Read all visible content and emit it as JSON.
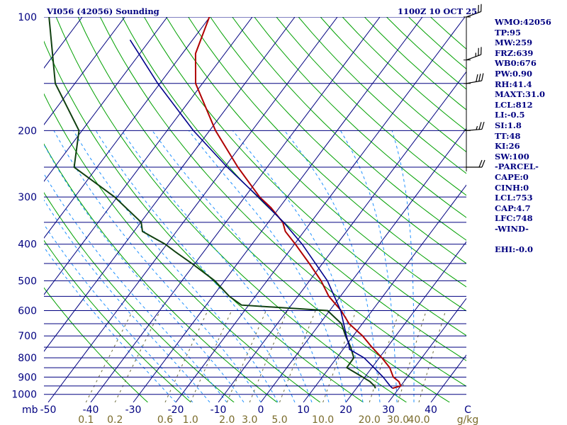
{
  "header": {
    "station": "VI056 (42056) Sounding",
    "time": "1100Z 10 OCT 25"
  },
  "indices": [
    "WMO:42056",
    "TP:95",
    "MW:259",
    "FRZ:639",
    "WB0:676",
    "PW:0.90",
    "RH:41.4",
    "MAXT:31.0",
    "LCL:812",
    "LI:-0.5",
    "SI:1.8",
    "TT:48",
    "KI:26",
    "SW:100",
    "-PARCEL-",
    "CAPE:0",
    "CINH:0",
    "LCL:753",
    "CAP:4.7",
    "LFC:748",
    "-WIND-",
    "",
    "EHI:-0.0"
  ],
  "colors": {
    "isobar": "#000080",
    "isotherm": "#000080",
    "dry_adiabat": "#00a000",
    "moist_adiabat": "#1e90ff",
    "mixing_ratio": "#6b6b3a",
    "temperature": "#b00000",
    "dewpoint": "#104010",
    "parcel": "#00008b",
    "wind_barb": "#000000",
    "text": "#000080",
    "mixing_label": "#7a6b2a"
  },
  "chart_data": {
    "type": "line",
    "diagram": "skew-T log-p",
    "y_unit": "mb",
    "y_ticks": [
      100,
      200,
      300,
      400,
      500,
      600,
      700,
      800,
      900,
      1000
    ],
    "ylim": [
      1000,
      100
    ],
    "x_ticks": [
      -50,
      -40,
      -30,
      -20,
      -10,
      0,
      10,
      20,
      30,
      40
    ],
    "xlim": [
      -50,
      50
    ],
    "x_unit": "C",
    "mixing_ratio_labels": [
      "0.1",
      "0.2",
      "0.6",
      "1.0",
      "2.0",
      "3.0",
      "5.0",
      "10.0",
      "20.0",
      "30.0",
      "40.0"
    ],
    "mixing_ratio_unit": "g/kg",
    "temperature": {
      "p": [
        964,
        950,
        925,
        900,
        850,
        800,
        750,
        700,
        650,
        600,
        550,
        500,
        450,
        400,
        370,
        350,
        320,
        300,
        250,
        200,
        150,
        125,
        100
      ],
      "t": [
        28.5,
        30.0,
        28.8,
        26.7,
        24.2,
        20.6,
        16.4,
        12.2,
        6.9,
        2.7,
        -2.7,
        -7.3,
        -13.1,
        -19.8,
        -24.4,
        -26.6,
        -32.0,
        -36.5,
        -46.9,
        -58.6,
        -71.6,
        -76.9,
        -80.1
      ]
    },
    "dewpoint": {
      "p": [
        964,
        950,
        925,
        900,
        850,
        800,
        750,
        700,
        650,
        600,
        580,
        550,
        500,
        450,
        420,
        400,
        370,
        350,
        300,
        250,
        200,
        150,
        100
      ],
      "td": [
        24.5,
        23.8,
        22.0,
        19.5,
        14.1,
        14.0,
        11.4,
        8.2,
        5.1,
        -0.5,
        -21.7,
        -26.1,
        -32.3,
        -40.7,
        -46.5,
        -50.4,
        -58.0,
        -59.9,
        -70.6,
        -85.4,
        -90.7,
        -104.6,
        -117.8
      ]
    },
    "parcel": {
      "p": [
        964,
        950,
        900,
        850,
        800,
        760,
        740,
        700,
        600,
        500,
        400,
        350,
        300,
        250,
        200,
        150,
        115
      ],
      "t": [
        28.5,
        27.5,
        24.3,
        20.5,
        16.4,
        11.5,
        10.6,
        8.4,
        2.6,
        -5.8,
        -18.2,
        -26.4,
        -36.8,
        -49.4,
        -63.8,
        -80.5,
        -94.7
      ]
    },
    "wind_barbs": [
      {
        "p": 100,
        "dir": 250,
        "speed_kt": 20
      },
      {
        "p": 130,
        "dir": 250,
        "speed_kt": 25
      },
      {
        "p": 150,
        "dir": 260,
        "speed_kt": 30
      },
      {
        "p": 200,
        "dir": 265,
        "speed_kt": 25
      },
      {
        "p": 250,
        "dir": 270,
        "speed_kt": 20
      }
    ]
  }
}
